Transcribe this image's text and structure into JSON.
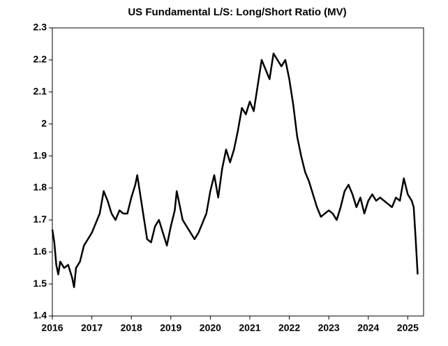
{
  "chart_data": {
    "type": "line",
    "title": "US Fundamental L/S: Long/Short Ratio (MV)",
    "x": [
      2016.0,
      2016.05,
      2016.1,
      2016.15,
      2016.2,
      2016.3,
      2016.4,
      2016.5,
      2016.55,
      2016.6,
      2016.7,
      2016.8,
      2016.9,
      2017.0,
      2017.1,
      2017.2,
      2017.3,
      2017.4,
      2017.5,
      2017.6,
      2017.7,
      2017.8,
      2017.9,
      2018.0,
      2018.1,
      2018.15,
      2018.2,
      2018.3,
      2018.4,
      2018.5,
      2018.6,
      2018.7,
      2018.8,
      2018.9,
      2019.0,
      2019.1,
      2019.15,
      2019.2,
      2019.3,
      2019.4,
      2019.5,
      2019.6,
      2019.7,
      2019.8,
      2019.9,
      2020.0,
      2020.1,
      2020.2,
      2020.3,
      2020.4,
      2020.5,
      2020.6,
      2020.7,
      2020.8,
      2020.9,
      2021.0,
      2021.1,
      2021.2,
      2021.3,
      2021.4,
      2021.5,
      2021.6,
      2021.7,
      2021.8,
      2021.9,
      2022.0,
      2022.1,
      2022.2,
      2022.3,
      2022.4,
      2022.5,
      2022.6,
      2022.7,
      2022.8,
      2022.9,
      2023.0,
      2023.1,
      2023.2,
      2023.3,
      2023.4,
      2023.5,
      2023.6,
      2023.7,
      2023.8,
      2023.9,
      2024.0,
      2024.1,
      2024.2,
      2024.3,
      2024.4,
      2024.5,
      2024.6,
      2024.7,
      2024.8,
      2024.9,
      2025.0,
      2025.1,
      2025.15,
      2025.2,
      2025.25
    ],
    "series": [
      {
        "color": "#000000",
        "values": [
          1.67,
          1.63,
          1.56,
          1.53,
          1.57,
          1.55,
          1.56,
          1.52,
          1.49,
          1.55,
          1.57,
          1.62,
          1.64,
          1.66,
          1.69,
          1.72,
          1.79,
          1.76,
          1.72,
          1.7,
          1.73,
          1.72,
          1.72,
          1.77,
          1.81,
          1.84,
          1.8,
          1.72,
          1.64,
          1.63,
          1.68,
          1.7,
          1.66,
          1.62,
          1.68,
          1.73,
          1.79,
          1.76,
          1.7,
          1.68,
          1.66,
          1.64,
          1.66,
          1.69,
          1.72,
          1.79,
          1.84,
          1.77,
          1.86,
          1.92,
          1.88,
          1.92,
          1.98,
          2.05,
          2.03,
          2.07,
          2.04,
          2.12,
          2.2,
          2.17,
          2.14,
          2.22,
          2.2,
          2.18,
          2.2,
          2.14,
          2.06,
          1.96,
          1.9,
          1.85,
          1.82,
          1.78,
          1.74,
          1.71,
          1.72,
          1.73,
          1.72,
          1.7,
          1.74,
          1.79,
          1.81,
          1.78,
          1.74,
          1.77,
          1.72,
          1.76,
          1.78,
          1.76,
          1.77,
          1.76,
          1.75,
          1.74,
          1.77,
          1.76,
          1.83,
          1.78,
          1.76,
          1.74,
          1.64,
          1.53
        ]
      }
    ],
    "xlim": [
      2016,
      2025.4
    ],
    "xticks": [
      2016,
      2017,
      2018,
      2019,
      2020,
      2021,
      2022,
      2023,
      2024,
      2025
    ],
    "ylim": [
      1.4,
      2.3
    ],
    "yticks": [
      1.4,
      1.5,
      1.6,
      1.7,
      1.8,
      1.9,
      2,
      2.1,
      2.2,
      2.3
    ],
    "grid": false
  }
}
